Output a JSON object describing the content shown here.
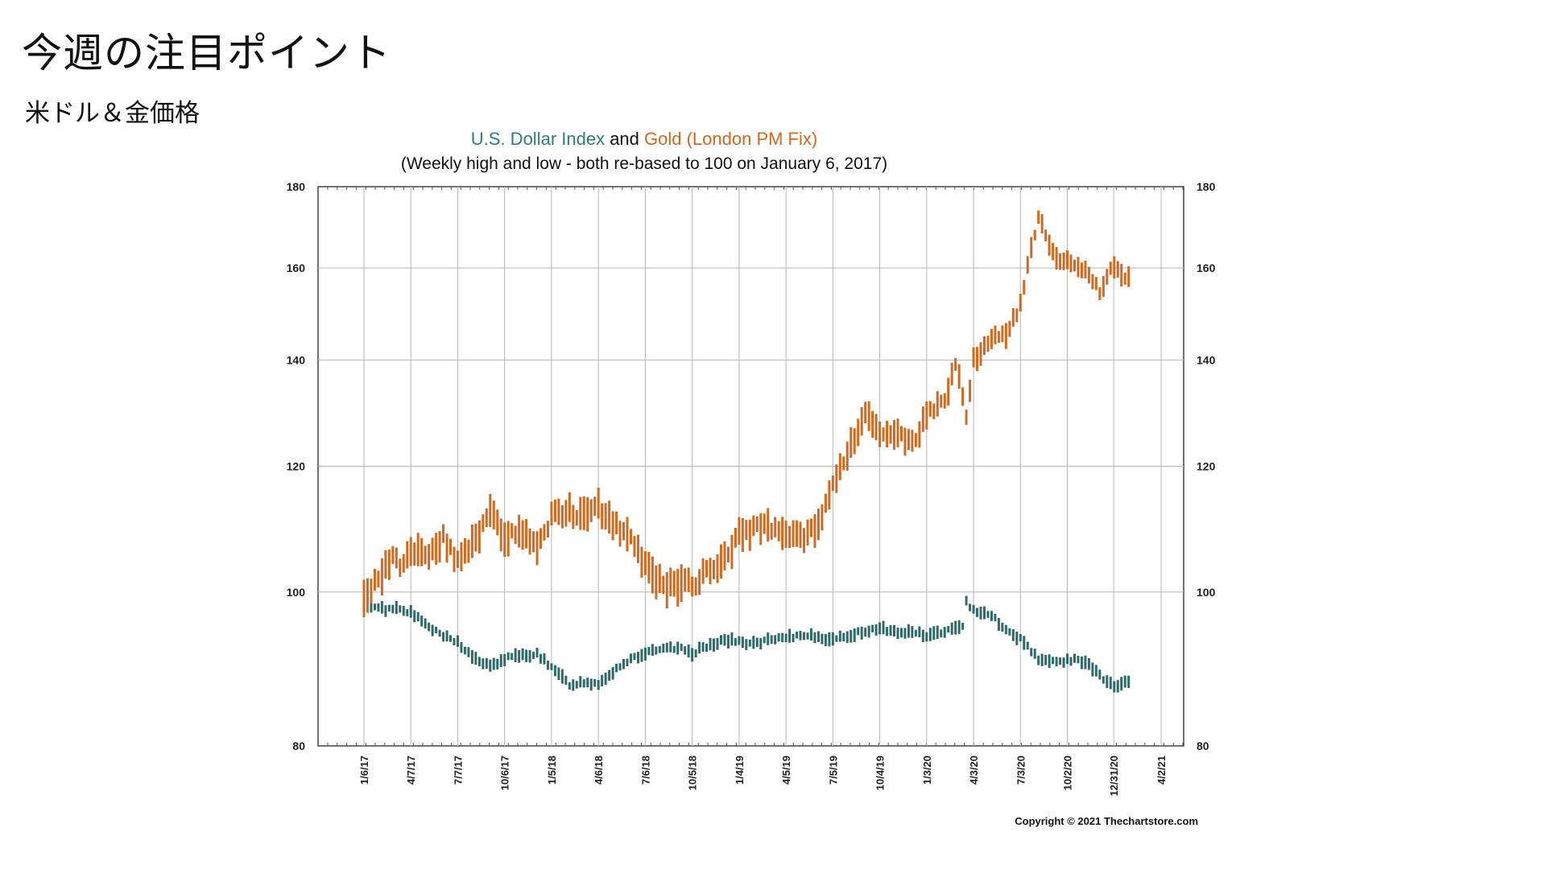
{
  "page": {
    "title": "今週の注目ポイント",
    "subtitle": "米ドル＆金価格"
  },
  "chart_data": {
    "type": "line",
    "title_parts": [
      {
        "text": "U.S. Dollar Index",
        "color": "#2e7d7d"
      },
      {
        "text": " and ",
        "color": "#111111"
      },
      {
        "text": "Gold (London PM Fix)",
        "color": "#d2691e"
      }
    ],
    "subtitle": "(Weekly high and low - both re-based to 100 on January 6, 2017)",
    "copyright": "Copyright © 2021 Thechartstore.com",
    "x_tick_labels": [
      "1/6/17",
      "4/7/17",
      "7/7/17",
      "10/6/17",
      "1/5/18",
      "4/6/18",
      "7/6/18",
      "10/5/18",
      "1/4/19",
      "4/5/19",
      "7/5/19",
      "10/4/19",
      "1/3/20",
      "4/3/20",
      "7/3/20",
      "10/2/20",
      "12/31/20",
      "4/2/21"
    ],
    "y_ticks": [
      80,
      100,
      120,
      140,
      160,
      180
    ],
    "y_scale": "log",
    "ylim": [
      80,
      180
    ],
    "grid": true,
    "series": [
      {
        "name": "U.S. Dollar Index",
        "color": "#2e6b68",
        "anchors": [
          [
            "1/6/17",
            98.5
          ],
          [
            "2/17/17",
            97.5
          ],
          [
            "3/17/17",
            97.8
          ],
          [
            "4/7/17",
            97.0
          ],
          [
            "5/5/17",
            95.5
          ],
          [
            "6/2/17",
            94.0
          ],
          [
            "7/7/17",
            93.0
          ],
          [
            "8/4/17",
            91.0
          ],
          [
            "9/8/17",
            89.7
          ],
          [
            "10/6/17",
            90.8
          ],
          [
            "11/10/17",
            91.2
          ],
          [
            "12/8/17",
            91.5
          ],
          [
            "1/5/18",
            89.5
          ],
          [
            "2/9/18",
            87.5
          ],
          [
            "3/9/18",
            87.7
          ],
          [
            "4/6/18",
            87.6
          ],
          [
            "5/11/18",
            89.5
          ],
          [
            "6/8/18",
            90.8
          ],
          [
            "7/6/18",
            91.5
          ],
          [
            "8/10/18",
            92.0
          ],
          [
            "9/7/18",
            92.2
          ],
          [
            "10/5/18",
            91.5
          ],
          [
            "11/9/18",
            92.7
          ],
          [
            "12/7/18",
            93.3
          ],
          [
            "1/4/19",
            93.0
          ],
          [
            "2/8/19",
            92.8
          ],
          [
            "3/8/19",
            93.3
          ],
          [
            "4/5/19",
            93.5
          ],
          [
            "5/10/19",
            94.0
          ],
          [
            "6/7/19",
            93.8
          ],
          [
            "7/5/19",
            93.2
          ],
          [
            "8/9/19",
            94.0
          ],
          [
            "9/6/19",
            94.5
          ],
          [
            "10/4/19",
            95.0
          ],
          [
            "11/8/19",
            94.2
          ],
          [
            "12/6/19",
            94.5
          ],
          [
            "1/3/20",
            93.8
          ],
          [
            "2/7/20",
            94.5
          ],
          [
            "3/13/20",
            95.0
          ],
          [
            "3/20/20",
            98.5
          ],
          [
            "4/3/20",
            97.5
          ],
          [
            "5/8/20",
            96.8
          ],
          [
            "6/5/20",
            94.5
          ],
          [
            "7/3/20",
            93.5
          ],
          [
            "8/7/20",
            90.8
          ],
          [
            "9/4/20",
            90.3
          ],
          [
            "10/2/20",
            90.6
          ],
          [
            "11/6/20",
            90.5
          ],
          [
            "12/4/20",
            88.5
          ],
          [
            "12/31/20",
            87.2
          ],
          [
            "1/29/21",
            87.7
          ]
        ]
      },
      {
        "name": "Gold (London PM Fix)",
        "color": "#d2691e",
        "anchors": [
          [
            "1/6/17",
            99.0
          ],
          [
            "2/3/17",
            102.0
          ],
          [
            "3/3/17",
            105.0
          ],
          [
            "3/17/17",
            103.5
          ],
          [
            "4/7/17",
            106.5
          ],
          [
            "5/5/17",
            105.0
          ],
          [
            "6/9/17",
            108.0
          ],
          [
            "7/7/17",
            104.5
          ],
          [
            "8/11/17",
            108.0
          ],
          [
            "9/8/17",
            112.5
          ],
          [
            "10/6/17",
            108.5
          ],
          [
            "11/10/17",
            109.0
          ],
          [
            "12/8/17",
            106.5
          ],
          [
            "1/5/18",
            111.5
          ],
          [
            "2/9/18",
            112.5
          ],
          [
            "3/9/18",
            111.5
          ],
          [
            "4/6/18",
            113.0
          ],
          [
            "5/11/18",
            110.0
          ],
          [
            "6/8/18",
            108.5
          ],
          [
            "7/6/18",
            104.0
          ],
          [
            "8/10/18",
            100.5
          ],
          [
            "9/7/18",
            101.5
          ],
          [
            "10/5/18",
            101.0
          ],
          [
            "11/9/18",
            103.5
          ],
          [
            "12/7/18",
            105.0
          ],
          [
            "1/4/19",
            108.5
          ],
          [
            "2/8/19",
            109.5
          ],
          [
            "3/8/19",
            110.0
          ],
          [
            "4/5/19",
            109.0
          ],
          [
            "5/10/19",
            108.5
          ],
          [
            "6/7/19",
            110.0
          ],
          [
            "7/5/19",
            117.5
          ],
          [
            "8/9/19",
            123.5
          ],
          [
            "9/6/19",
            129.0
          ],
          [
            "10/4/19",
            126.5
          ],
          [
            "11/8/19",
            126.0
          ],
          [
            "12/6/19",
            124.0
          ],
          [
            "1/3/20",
            129.0
          ],
          [
            "2/7/20",
            132.0
          ],
          [
            "2/28/20",
            139.0
          ],
          [
            "3/13/20",
            133.0
          ],
          [
            "3/20/20",
            128.0
          ],
          [
            "4/3/20",
            140.0
          ],
          [
            "5/8/20",
            145.0
          ],
          [
            "6/5/20",
            144.5
          ],
          [
            "7/3/20",
            152.0
          ],
          [
            "8/7/20",
            172.0
          ],
          [
            "9/4/20",
            163.0
          ],
          [
            "10/2/20",
            161.5
          ],
          [
            "11/6/20",
            160.0
          ],
          [
            "12/4/20",
            155.0
          ],
          [
            "12/31/20",
            160.5
          ],
          [
            "1/29/21",
            157.5
          ]
        ]
      }
    ]
  }
}
